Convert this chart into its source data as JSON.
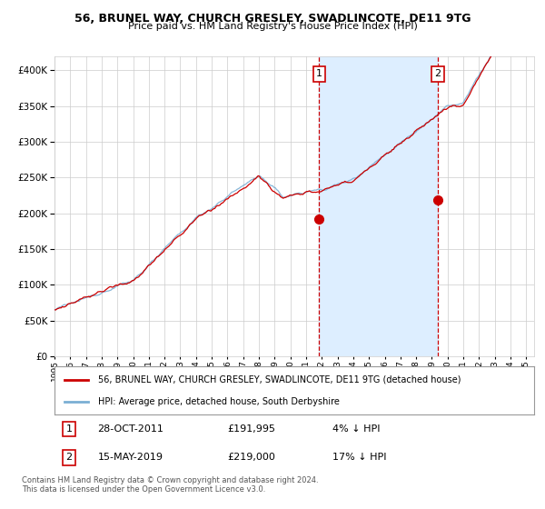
{
  "title_line1": "56, BRUNEL WAY, CHURCH GRESLEY, SWADLINCOTE, DE11 9TG",
  "title_line2": "Price paid vs. HM Land Registry's House Price Index (HPI)",
  "legend_red": "56, BRUNEL WAY, CHURCH GRESLEY, SWADLINCOTE, DE11 9TG (detached house)",
  "legend_blue": "HPI: Average price, detached house, South Derbyshire",
  "annotation1_label": "1",
  "annotation1_date": "28-OCT-2011",
  "annotation1_price": "£191,995",
  "annotation1_pct": "4% ↓ HPI",
  "annotation2_label": "2",
  "annotation2_date": "15-MAY-2019",
  "annotation2_price": "£219,000",
  "annotation2_pct": "17% ↓ HPI",
  "footnote": "Contains HM Land Registry data © Crown copyright and database right 2024.\nThis data is licensed under the Open Government Licence v3.0.",
  "red_color": "#cc0000",
  "blue_color": "#7bafd4",
  "shading_color": "#ddeeff",
  "bg_color": "#ffffff",
  "grid_color": "#cccccc",
  "ylim": [
    0,
    420000
  ],
  "yticks": [
    0,
    50000,
    100000,
    150000,
    200000,
    250000,
    300000,
    350000,
    400000
  ],
  "start_year": 1995,
  "end_year": 2025,
  "event1_year": 2011.83,
  "event2_year": 2019.37,
  "event1_value_red": 191995,
  "event2_value_red": 219000,
  "seed": 12345
}
